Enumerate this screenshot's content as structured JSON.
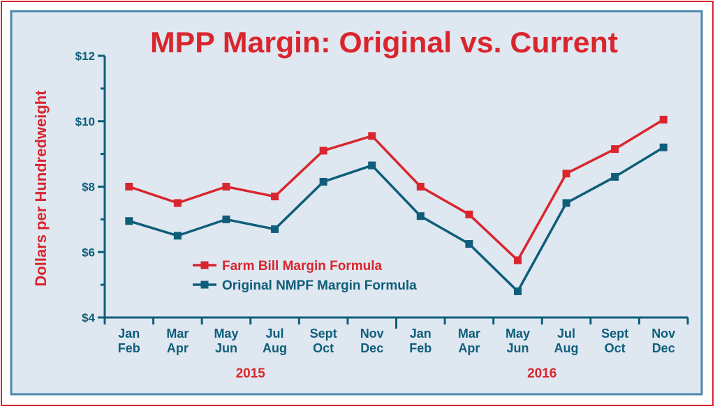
{
  "chart_data": {
    "type": "line",
    "title": "MPP Margin: Original vs. Current",
    "y_label": "Dollars per Hundredweight",
    "categories": [
      [
        "Jan",
        "Feb"
      ],
      [
        "Mar",
        "Apr"
      ],
      [
        "May",
        "Jun"
      ],
      [
        "Jul",
        "Aug"
      ],
      [
        "Sept",
        "Oct"
      ],
      [
        "Nov",
        "Dec"
      ],
      [
        "Jan",
        "Feb"
      ],
      [
        "Mar",
        "Apr"
      ],
      [
        "May",
        "Jun"
      ],
      [
        "Jul",
        "Aug"
      ],
      [
        "Sept",
        "Oct"
      ],
      [
        "Nov",
        "Dec"
      ]
    ],
    "x_groups": [
      "2015",
      "2016"
    ],
    "series": [
      {
        "name": "Farm Bill Margin Formula",
        "color": "#d9262e",
        "values": [
          8.0,
          7.5,
          8.0,
          7.7,
          9.1,
          9.55,
          8.0,
          7.15,
          5.75,
          8.4,
          9.15,
          10.05
        ]
      },
      {
        "name": "Original NMPF Margin Formula",
        "color": "#0e5e7a",
        "values": [
          6.95,
          6.5,
          7.0,
          6.7,
          8.15,
          8.65,
          7.1,
          6.25,
          4.8,
          7.5,
          8.3,
          9.2
        ]
      }
    ],
    "ylim": [
      4,
      12
    ],
    "yticks": [
      {
        "value": 4,
        "label": "$4"
      },
      {
        "value": 6,
        "label": "$6"
      },
      {
        "value": 8,
        "label": "$8"
      },
      {
        "value": 10,
        "label": "$10"
      },
      {
        "value": 12,
        "label": "$12"
      }
    ],
    "yminorticks": [
      5,
      7,
      9,
      11
    ],
    "grid": false
  }
}
